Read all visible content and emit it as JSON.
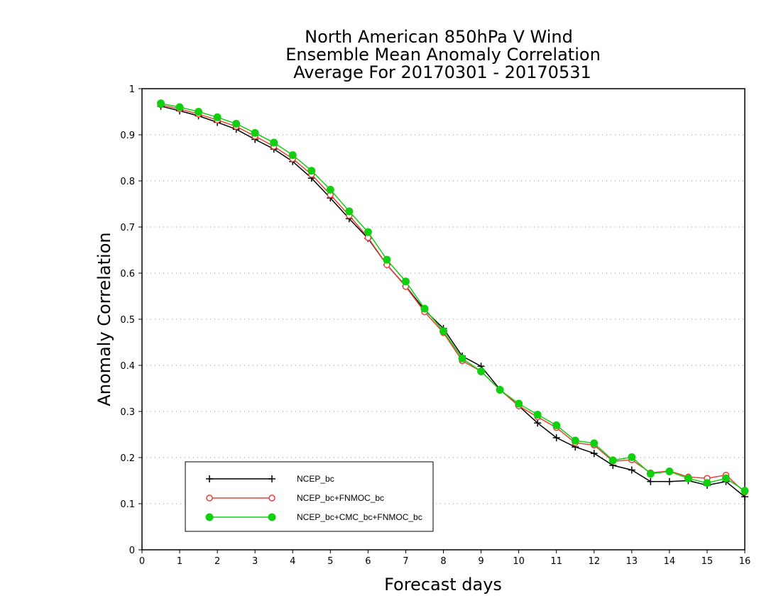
{
  "chart_data": {
    "type": "line",
    "title": [
      "North American 850hPa V Wind",
      "Ensemble Mean Anomaly Correlation",
      "Average For 20170301 - 20170531"
    ],
    "xlabel": "Forecast days",
    "ylabel": "Anomaly Correlation",
    "xlim": [
      0,
      16
    ],
    "ylim": [
      0,
      1
    ],
    "xticks": [
      "0",
      "1",
      "2",
      "3",
      "4",
      "5",
      "6",
      "7",
      "8",
      "9",
      "10",
      "11",
      "12",
      "13",
      "14",
      "15",
      "16"
    ],
    "yticks": [
      "0",
      "0.1",
      "0.2",
      "0.3",
      "0.4",
      "0.5",
      "0.6",
      "0.7",
      "0.8",
      "0.9",
      "1"
    ],
    "grid": "horizontal dotted",
    "legend_position": "bottom-left",
    "x": [
      0.5,
      1,
      1.5,
      2,
      2.5,
      3,
      3.5,
      4,
      4.5,
      5,
      5.5,
      6,
      6.5,
      7,
      7.5,
      8,
      8.5,
      9,
      9.5,
      10,
      10.5,
      11,
      11.5,
      12,
      12.5,
      13,
      13.5,
      14,
      14.5,
      15,
      15.5,
      16
    ],
    "series": [
      {
        "name": "NCEP_bc",
        "color": "#000000",
        "marker": "plus",
        "values": [
          0.962,
          0.952,
          0.941,
          0.927,
          0.912,
          0.89,
          0.869,
          0.842,
          0.806,
          0.763,
          0.718,
          0.675,
          0.618,
          0.572,
          0.52,
          0.48,
          0.42,
          0.398,
          0.348,
          0.312,
          0.275,
          0.243,
          0.223,
          0.209,
          0.183,
          0.173,
          0.148,
          0.148,
          0.15,
          0.14,
          0.148,
          0.115
        ]
      },
      {
        "name": "NCEP_bc+FNMOC_bc",
        "color": "#e8423c",
        "marker": "open-circle",
        "values": [
          0.965,
          0.956,
          0.945,
          0.932,
          0.918,
          0.897,
          0.875,
          0.848,
          0.814,
          0.77,
          0.725,
          0.677,
          0.618,
          0.571,
          0.516,
          0.471,
          0.41,
          0.387,
          0.347,
          0.312,
          0.288,
          0.265,
          0.232,
          0.227,
          0.192,
          0.195,
          0.167,
          0.171,
          0.158,
          0.155,
          0.162,
          0.125
        ]
      },
      {
        "name": "NCEP_bc+CMC_bc+FNMOC_bc",
        "color": "#10d010",
        "marker": "filled-circle",
        "values": [
          0.968,
          0.96,
          0.95,
          0.938,
          0.924,
          0.904,
          0.883,
          0.856,
          0.822,
          0.781,
          0.734,
          0.689,
          0.629,
          0.582,
          0.523,
          0.474,
          0.415,
          0.387,
          0.347,
          0.317,
          0.293,
          0.27,
          0.237,
          0.231,
          0.194,
          0.201,
          0.165,
          0.17,
          0.155,
          0.145,
          0.155,
          0.128
        ]
      }
    ]
  }
}
